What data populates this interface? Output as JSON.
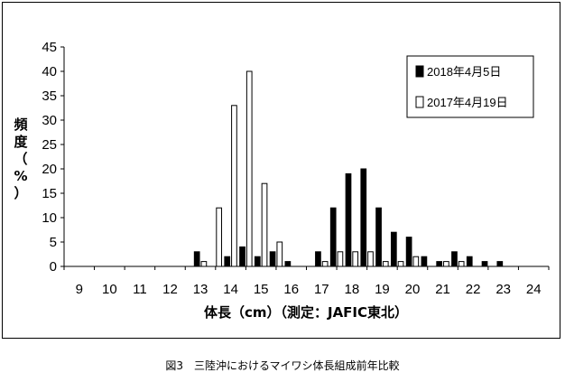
{
  "caption": "図3　三陸沖におけるマイワシ体長組成前年比較",
  "chart_data": {
    "type": "bar",
    "xlabel": "体長（cm）（測定：JAFIC東北）",
    "ylabel": "頻度（%）",
    "ylim": [
      0,
      45
    ],
    "yticks": [
      0,
      5,
      10,
      15,
      20,
      25,
      30,
      35,
      40,
      45
    ],
    "xlim": [
      8.5,
      24.5
    ],
    "xticks": [
      9,
      10,
      11,
      12,
      13,
      14,
      15,
      16,
      17,
      18,
      19,
      20,
      21,
      22,
      23,
      24
    ],
    "legend_position": "top-right",
    "grid": false,
    "x": [
      13,
      13.5,
      14,
      14.5,
      15,
      15.5,
      16,
      16.5,
      17,
      17.5,
      18,
      18.5,
      19,
      19.5,
      20,
      20.5,
      21,
      21.5,
      22,
      22.5,
      23
    ],
    "series": [
      {
        "name": "2018年4月5日",
        "fill": "#000000",
        "values": [
          3,
          0,
          2,
          4,
          2,
          3,
          1,
          0,
          3,
          12,
          19,
          20,
          12,
          7,
          6,
          2,
          1,
          3,
          2,
          1,
          1
        ]
      },
      {
        "name": "2017年4月19日",
        "fill": "#ffffff",
        "values": [
          1,
          12,
          33,
          40,
          17,
          5,
          0,
          0,
          1,
          3,
          3,
          3,
          1,
          1,
          2,
          0,
          1,
          1,
          0,
          0,
          0
        ]
      }
    ]
  }
}
